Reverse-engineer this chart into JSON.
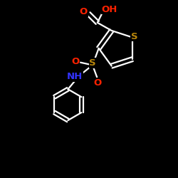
{
  "bg": "#000000",
  "bond_color": "#ffffff",
  "S_color": "#b8860b",
  "O_color": "#ff2200",
  "N_color": "#3333ff",
  "lw": 1.6,
  "fs": 9.5,
  "figsize": [
    2.5,
    2.5
  ],
  "dpi": 100,
  "xlim": [
    0,
    10
  ],
  "ylim": [
    0,
    10
  ]
}
